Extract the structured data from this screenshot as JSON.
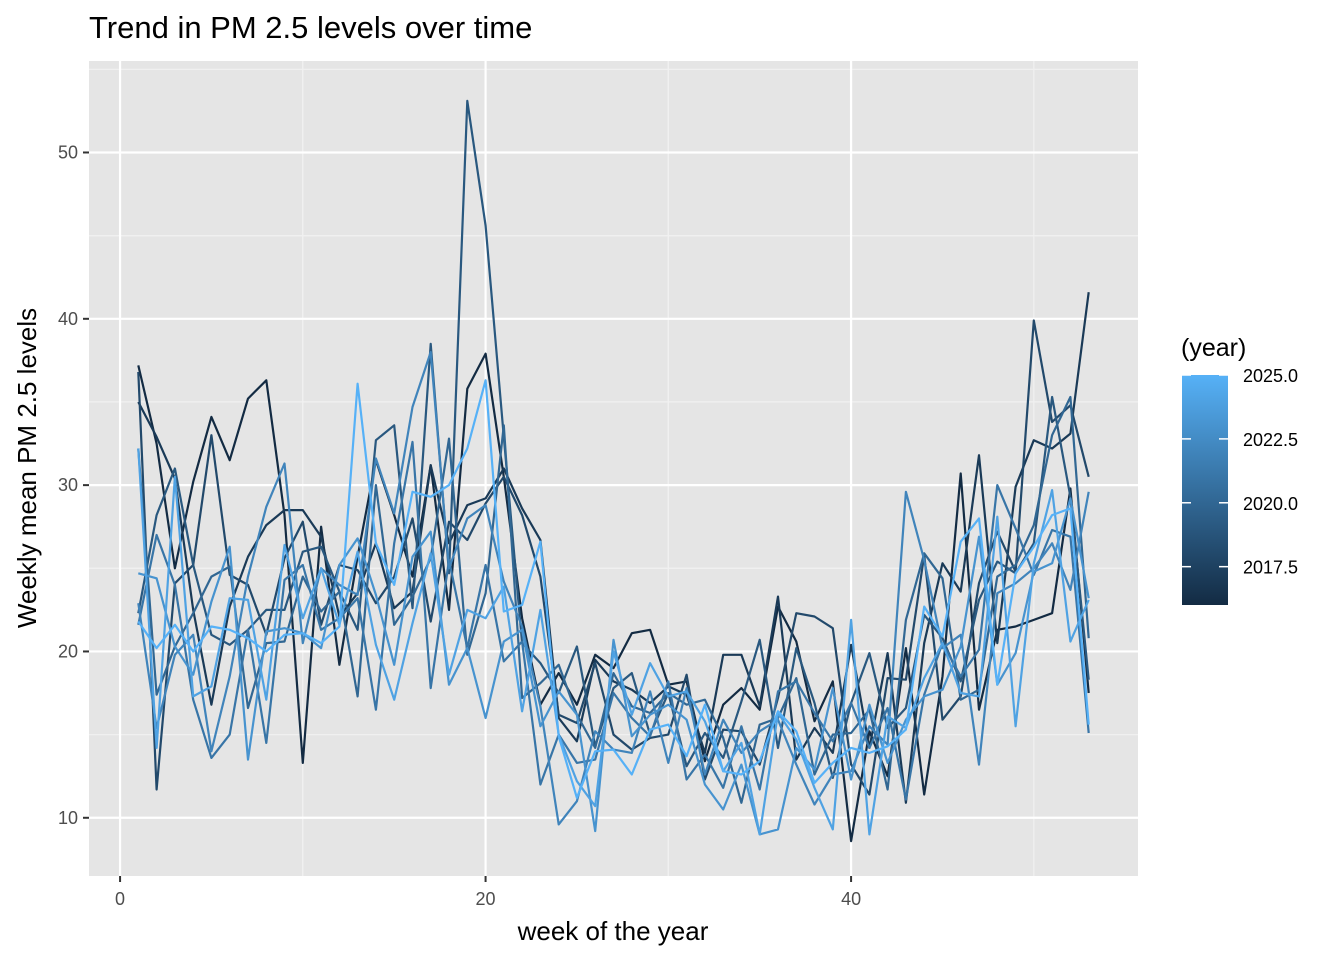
{
  "chart_data": {
    "type": "line",
    "title": "Trend in PM 2.5 levels over time",
    "xlabel": "week of the year",
    "ylabel": "Weekly mean PM 2.5 levels",
    "xlim": [
      -1.7,
      55.7
    ],
    "ylim": [
      6.5,
      55.5
    ],
    "x_ticks": [
      0,
      20,
      40
    ],
    "y_ticks": [
      10,
      20,
      30,
      40,
      50
    ],
    "grid": true,
    "legend": {
      "title": "(year)",
      "position": "right",
      "type": "colorbar",
      "range": [
        2016,
        2025
      ],
      "ticks": [
        2017.5,
        2020.0,
        2022.5,
        2025.0
      ],
      "tick_labels": [
        "2017.5",
        "2020.0",
        "2022.5",
        "2025.0"
      ],
      "color_low": "#132b43",
      "color_high": "#56b1f7"
    },
    "colors": {
      "panel_background": "#e5e5e5",
      "grid_major": "#ffffff",
      "grid_minor": "#f1f1f1"
    },
    "x": [
      1,
      2,
      3,
      4,
      5,
      6,
      7,
      8,
      9,
      10,
      11,
      12,
      13,
      14,
      15,
      16,
      17,
      18,
      19,
      20,
      21,
      22,
      23,
      24,
      25,
      26,
      27,
      28,
      29,
      30,
      31,
      32,
      33,
      34,
      35,
      36,
      37,
      38,
      39,
      40,
      41,
      42,
      43,
      44,
      45,
      46,
      47,
      48,
      49,
      50,
      51,
      52,
      53
    ],
    "series": [
      {
        "year": 2016,
        "values": [
          37.2,
          32.5,
          25.0,
          30.2,
          34.1,
          31.5,
          35.2,
          36.3,
          28.2,
          13.3,
          27.5,
          19.2,
          25.7,
          31.5,
          28.2,
          24.5,
          31.2,
          22.5,
          35.8,
          37.9,
          30.5,
          22.0,
          16.8,
          18.7,
          16.8,
          19.8,
          19.0,
          21.1,
          21.3,
          18.0,
          18.2,
          13.4,
          16.8,
          17.8,
          16.5,
          22.7,
          20.6,
          15.8,
          18.2,
          8.6,
          15.2,
          12.5,
          20.2,
          11.4,
          18.5,
          30.7,
          16.5,
          21.3,
          21.5,
          21.9,
          22.3,
          29.8,
          17.5
        ]
      },
      {
        "year": 2017,
        "values": [
          35.0,
          32.9,
          30.4,
          22.5,
          16.8,
          22.7,
          25.7,
          27.6,
          28.5,
          28.5,
          26.9,
          22.1,
          23.5,
          26.5,
          22.6,
          23.6,
          31.2,
          26.5,
          28.8,
          29.2,
          31.0,
          28.6,
          26.7,
          16.0,
          14.6,
          19.5,
          18.2,
          17.7,
          16.9,
          17.9,
          17.4,
          13.9,
          19.8,
          19.8,
          16.7,
          23.3,
          13.5,
          15.4,
          13.9,
          20.4,
          14.2,
          19.9,
          10.9,
          20.5,
          25.3,
          23.6,
          31.8,
          20.5,
          29.9,
          32.7,
          32.2,
          33.1,
          41.6
        ]
      },
      {
        "year": 2018,
        "values": [
          36.8,
          11.7,
          24.1,
          25.2,
          33.0,
          24.6,
          24.0,
          21.0,
          25.6,
          27.8,
          21.6,
          25.2,
          24.9,
          22.9,
          24.5,
          28.0,
          21.8,
          27.8,
          26.7,
          28.9,
          30.5,
          28.2,
          24.5,
          16.2,
          15.7,
          19.3,
          15.0,
          14.1,
          14.8,
          15.0,
          18.6,
          12.3,
          15.3,
          15.2,
          13.2,
          17.2,
          22.3,
          22.1,
          21.4,
          13.2,
          11.4,
          18.4,
          18.3,
          25.8,
          15.9,
          17.3,
          24.1,
          27.2,
          24.8,
          39.9,
          33.8,
          34.8,
          30.5
        ]
      },
      {
        "year": 2019,
        "values": [
          22.3,
          28.2,
          31.0,
          25.2,
          21.0,
          20.4,
          21.3,
          22.5,
          22.5,
          26.0,
          26.3,
          23.6,
          21.3,
          32.7,
          33.6,
          22.6,
          38.5,
          24.7,
          53.1,
          45.6,
          32.9,
          20.5,
          19.3,
          17.5,
          20.3,
          14.3,
          17.8,
          18.7,
          15.0,
          17.5,
          13.1,
          15.1,
          13.6,
          17.0,
          20.7,
          14.2,
          20.2,
          16.9,
          12.4,
          16.9,
          19.9,
          15.4,
          16.6,
          22.2,
          20.8,
          18.2,
          23.1,
          25.4,
          24.7,
          26.5,
          35.3,
          29.3,
          18.3
        ]
      },
      {
        "year": 2020,
        "values": [
          32.2,
          17.4,
          20.3,
          22.3,
          24.5,
          25.1,
          16.6,
          20.5,
          20.6,
          24.5,
          22.4,
          23.6,
          17.3,
          30.0,
          21.6,
          23.3,
          25.6,
          32.8,
          19.8,
          23.5,
          33.6,
          17.2,
          18.1,
          19.2,
          16.2,
          14.2,
          18.7,
          16.7,
          16.3,
          17.5,
          16.8,
          17.1,
          14.8,
          10.9,
          15.6,
          16.0,
          18.4,
          12.6,
          15.0,
          15.1,
          16.5,
          11.7,
          21.9,
          25.9,
          24.4,
          17.1,
          17.7,
          24.5,
          25.2,
          27.6,
          33.0,
          35.3,
          20.8
        ]
      },
      {
        "year": 2021,
        "values": [
          21.6,
          27.0,
          24.0,
          17.1,
          13.6,
          15.0,
          21.3,
          14.5,
          24.3,
          25.2,
          21.3,
          22.0,
          23.2,
          16.5,
          26.5,
          32.6,
          17.8,
          25.5,
          20.2,
          25.2,
          19.4,
          20.6,
          12.0,
          15.0,
          13.3,
          13.5,
          17.5,
          16.0,
          14.9,
          18.2,
          12.3,
          13.8,
          11.8,
          15.5,
          11.7,
          17.6,
          18.2,
          16.3,
          14.6,
          16.9,
          14.2,
          16.6,
          11.1,
          17.4,
          20.5,
          18.5,
          20.1,
          30.0,
          27.4,
          24.6,
          27.3,
          26.9,
          15.1
        ]
      },
      {
        "year": 2022,
        "values": [
          22.9,
          15.4,
          19.8,
          21.0,
          14.0,
          18.5,
          24.5,
          28.7,
          31.3,
          20.5,
          25.0,
          24.0,
          23.4,
          31.6,
          28.3,
          34.7,
          38.0,
          25.0,
          28.0,
          28.8,
          24.2,
          21.5,
          16.7,
          9.6,
          11.0,
          15.2,
          14.1,
          13.9,
          17.6,
          13.3,
          17.8,
          12.6,
          15.9,
          13.9,
          15.2,
          15.9,
          13.2,
          10.8,
          12.6,
          12.8,
          15.5,
          14.4,
          29.6,
          25.5,
          20.2,
          21.0,
          13.2,
          23.5,
          24.1,
          25.0,
          26.5,
          23.7,
          29.6
        ]
      },
      {
        "year": 2023,
        "values": [
          24.7,
          24.4,
          20.3,
          18.6,
          23.0,
          26.3,
          13.5,
          21.2,
          21.4,
          21.1,
          20.2,
          25.2,
          26.8,
          23.4,
          19.2,
          25.7,
          27.2,
          18.0,
          20.2,
          16.0,
          20.6,
          21.3,
          15.5,
          17.6,
          16.2,
          9.2,
          20.7,
          14.9,
          16.2,
          16.8,
          15.9,
          12.0,
          10.5,
          13.2,
          9.0,
          9.3,
          14.2,
          12.9,
          17.8,
          12.3,
          16.8,
          13.3,
          15.9,
          17.3,
          17.7,
          20.3,
          26.9,
          18.0,
          19.9,
          24.8,
          25.3,
          29.2,
          23.2
        ]
      },
      {
        "year": 2024,
        "values": [
          32.2,
          14.2,
          30.5,
          17.3,
          17.9,
          23.2,
          23.1,
          17.1,
          26.4,
          22.0,
          25.0,
          21.6,
          26.0,
          20.4,
          17.1,
          21.7,
          25.9,
          18.6,
          22.5,
          22.0,
          23.9,
          16.4,
          22.5,
          15.0,
          12.2,
          10.7,
          20.0,
          16.2,
          19.3,
          17.3,
          17.6,
          15.8,
          12.8,
          14.5,
          9.0,
          16.3,
          14.7,
          11.8,
          9.3,
          21.9,
          9.0,
          16.1,
          15.4,
          18.4,
          20.5,
          17.5,
          17.3,
          28.1,
          15.5,
          25.3,
          29.7,
          20.6,
          23.1
        ]
      },
      {
        "year": 2025,
        "values": [
          21.8,
          20.2,
          21.6,
          20.0,
          21.5,
          21.3,
          20.8,
          20.0,
          21.0,
          21.1,
          20.5,
          21.5,
          36.1,
          26.5,
          24.0,
          29.6,
          29.3,
          30.0,
          32.2,
          36.3,
          22.4,
          22.8,
          26.6,
          14.9,
          11.2,
          14.0,
          14.1,
          12.6,
          15.3,
          15.6,
          13.7,
          16.8,
          12.8,
          12.6,
          13.4,
          16.4,
          15.2,
          12.1,
          13.3,
          14.2,
          13.9,
          14.3,
          15.3,
          22.7,
          20.9,
          26.6,
          28.0,
          18.0,
          24.7,
          26.3,
          28.2,
          28.6,
          15.6
        ]
      }
    ]
  }
}
